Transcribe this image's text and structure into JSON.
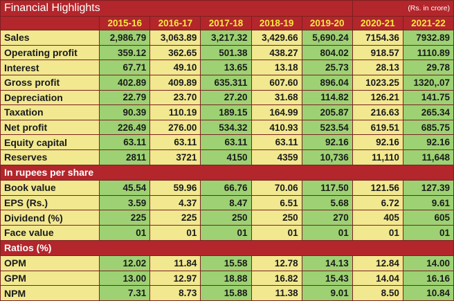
{
  "title": "Financial Highlights",
  "unit": "(Rs. in crore)",
  "years": [
    "2015-16",
    "2016-17",
    "2017-18",
    "2018-19",
    "2019-20",
    "2020-21",
    "2021-22"
  ],
  "financials": [
    {
      "label": "Sales",
      "values": [
        "2,986.79",
        "3,063.89",
        "3,217.32",
        "3,429.66",
        "5,690.24",
        "7154.36",
        "7932.89"
      ]
    },
    {
      "label": "Operating profit",
      "values": [
        "359.12",
        "362.65",
        "501.38",
        "438.27",
        "804.02",
        "918.57",
        "1110.89"
      ]
    },
    {
      "label": "Interest",
      "values": [
        "67.71",
        "49.10",
        "13.65",
        "13.18",
        "25.73",
        "28.13",
        "29.78"
      ]
    },
    {
      "label": "Gross profit",
      "values": [
        "402.89",
        "409.89",
        "635.311",
        "607.60",
        "896.04",
        "1023.25",
        "1320,.07"
      ]
    },
    {
      "label": "Depreciation",
      "values": [
        "22.79",
        "23.70",
        "27.20",
        "31.68",
        "114.82",
        "126.21",
        "141.75"
      ]
    },
    {
      "label": "Taxation",
      "values": [
        "90.39",
        "110.19",
        "189.15",
        "164.99",
        "205.87",
        "216.63",
        "265.34"
      ]
    },
    {
      "label": "Net profit",
      "values": [
        "226.49",
        "276.00",
        "534.32",
        "410.93",
        "523.54",
        "619.51",
        "685.75"
      ]
    },
    {
      "label": "Equity capital",
      "values": [
        "63.11",
        "63.11",
        "63.11",
        "63.11",
        "92.16",
        "92.16",
        "92.16"
      ]
    },
    {
      "label": "Reserves",
      "values": [
        "2811",
        "3721",
        "4150",
        "4359",
        "10,736",
        "11,110",
        "11,648"
      ]
    }
  ],
  "per_share": {
    "heading": "In rupees per share",
    "rows": [
      {
        "label": "Book value",
        "values": [
          "45.54",
          "59.96",
          "66.76",
          "70.06",
          "117.50",
          "121.56",
          "127.39"
        ]
      },
      {
        "label": "EPS (Rs.)",
        "values": [
          "3.59",
          "4.37",
          "8.47",
          "6.51",
          "5.68",
          "6.72",
          "9.61"
        ]
      },
      {
        "label": "Dividend (%)",
        "values": [
          "225",
          "225",
          "250",
          "250",
          "270",
          "405",
          "605"
        ]
      },
      {
        "label": "Face  value",
        "values": [
          "01",
          "01",
          "01",
          "01",
          "01",
          "01",
          "01"
        ]
      }
    ]
  },
  "ratios": {
    "heading": "Ratios (%)",
    "rows": [
      {
        "label": "OPM",
        "values": [
          "12.02",
          "11.84",
          "15.58",
          "12.78",
          "14.13",
          "12.84",
          "14.00"
        ]
      },
      {
        "label": "GPM",
        "values": [
          "13.00",
          "12.97",
          "18.88",
          "16.82",
          "15.43",
          "14.04",
          "16.16"
        ]
      },
      {
        "label": "  NPM",
        "values": [
          "7.31",
          "8.73",
          "15.88",
          "11.38",
          "9.01",
          "8.50",
          "10.84"
        ]
      }
    ]
  },
  "colors": {
    "header_red": "#b3262b",
    "year_yellow": "#f7e840",
    "cell_green": "#9dd173",
    "cell_cream": "#f1e890"
  }
}
